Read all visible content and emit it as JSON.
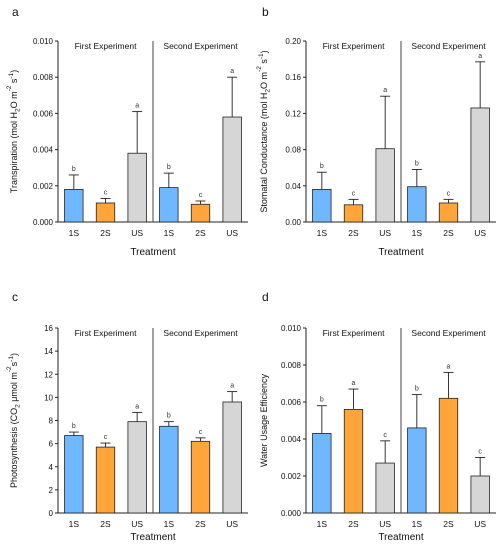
{
  "colors": {
    "1S": "#6fb8ff",
    "2S": "#ffa53a",
    "US": "#d6d6d6"
  },
  "chart_data": [
    {
      "panel": "a",
      "type": "bar",
      "xlabel": "Treatment",
      "ylabel_parts": [
        "Transpiration (mol H",
        "2",
        "O m",
        "-2",
        " s",
        "-1",
        ")"
      ],
      "ylim": [
        0,
        0.01
      ],
      "yticks": [
        "0.000",
        "0.002",
        "0.004",
        "0.006",
        "0.008",
        "0.010"
      ],
      "groups": [
        {
          "label": "First Experiment",
          "categories": [
            "1S",
            "2S",
            "US"
          ],
          "values": [
            0.0018,
            0.00105,
            0.0038
          ],
          "errors": [
            0.0008,
            0.00025,
            0.0023
          ],
          "letters": [
            "b",
            "c",
            "a"
          ]
        },
        {
          "label": "Second Experiment",
          "categories": [
            "1S",
            "2S",
            "US"
          ],
          "values": [
            0.0019,
            0.00098,
            0.0058
          ],
          "errors": [
            0.0008,
            0.00018,
            0.0022
          ],
          "letters": [
            "b",
            "c",
            "a"
          ]
        }
      ]
    },
    {
      "panel": "b",
      "type": "bar",
      "xlabel": "Treatment",
      "ylabel_parts": [
        "Stomatal Conductance (mol H",
        "2",
        "O m",
        "-2",
        " s",
        "-1",
        ")"
      ],
      "ylim": [
        0,
        0.2
      ],
      "yticks": [
        "0.00",
        "0.04",
        "0.08",
        "0.12",
        "0.16",
        "0.20"
      ],
      "groups": [
        {
          "label": "First Experiment",
          "categories": [
            "1S",
            "2S",
            "US"
          ],
          "values": [
            0.036,
            0.019,
            0.081
          ],
          "errors": [
            0.019,
            0.006,
            0.058
          ],
          "letters": [
            "b",
            "c",
            "a"
          ]
        },
        {
          "label": "Second Experiment",
          "categories": [
            "1S",
            "2S",
            "US"
          ],
          "values": [
            0.039,
            0.021,
            0.126
          ],
          "errors": [
            0.019,
            0.004,
            0.051
          ],
          "letters": [
            "b",
            "c",
            "a"
          ]
        }
      ]
    },
    {
      "panel": "c",
      "type": "bar",
      "xlabel": "Treatment",
      "ylabel_parts": [
        "Photosynthesis (CO",
        "2",
        " μmol m",
        "-2",
        "s",
        "-1",
        ")"
      ],
      "ylim": [
        0,
        16
      ],
      "yticks": [
        "0",
        "2",
        "4",
        "6",
        "8",
        "10",
        "12",
        "14",
        "16"
      ],
      "groups": [
        {
          "label": "First Experiment",
          "categories": [
            "1S",
            "2S",
            "US"
          ],
          "values": [
            6.7,
            5.7,
            7.9
          ],
          "errors": [
            0.3,
            0.35,
            0.8
          ],
          "letters": [
            "b",
            "c",
            "a"
          ]
        },
        {
          "label": "Second Experiment",
          "categories": [
            "1S",
            "2S",
            "US"
          ],
          "values": [
            7.5,
            6.2,
            9.6
          ],
          "errors": [
            0.4,
            0.3,
            0.9
          ],
          "letters": [
            "b",
            "c",
            "a"
          ]
        }
      ]
    },
    {
      "panel": "d",
      "type": "bar",
      "xlabel": "Treatment",
      "ylabel_parts": [
        "Water Usage Efficiency"
      ],
      "ylim": [
        0,
        0.01
      ],
      "yticks": [
        "0.000",
        "0.002",
        "0.004",
        "0.006",
        "0.008",
        "0.010"
      ],
      "groups": [
        {
          "label": "First Experiment",
          "categories": [
            "1S",
            "2S",
            "US"
          ],
          "values": [
            0.0043,
            0.0056,
            0.0027
          ],
          "errors": [
            0.0015,
            0.0011,
            0.0012
          ],
          "letters": [
            "b",
            "a",
            "c"
          ]
        },
        {
          "label": "Second Experiment",
          "categories": [
            "1S",
            "2S",
            "US"
          ],
          "values": [
            0.0046,
            0.0062,
            0.002
          ],
          "errors": [
            0.0018,
            0.0014,
            0.001
          ],
          "letters": [
            "b",
            "a",
            "c"
          ]
        }
      ]
    }
  ]
}
